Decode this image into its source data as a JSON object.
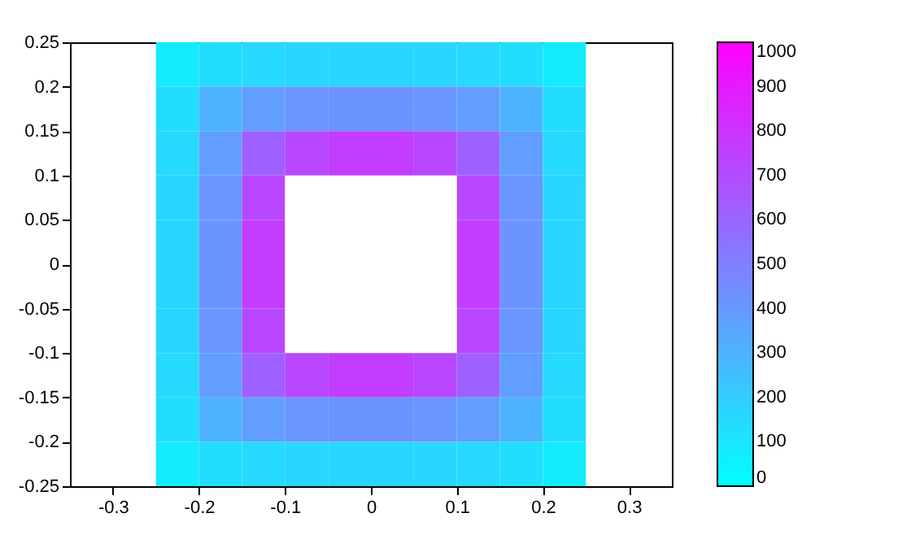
{
  "chart_data": {
    "type": "heatmap",
    "x": [
      -0.225,
      -0.175,
      -0.125,
      -0.075,
      -0.025,
      0.025,
      0.075,
      0.125,
      0.175,
      0.225
    ],
    "y": [
      0.225,
      0.175,
      0.125,
      0.075,
      0.025,
      -0.025,
      -0.075,
      -0.125,
      -0.175,
      -0.225
    ],
    "cells": [
      [
        80,
        130,
        150,
        160,
        160,
        160,
        160,
        150,
        130,
        80
      ],
      [
        130,
        300,
        380,
        410,
        420,
        420,
        410,
        380,
        300,
        130
      ],
      [
        150,
        380,
        620,
        720,
        760,
        760,
        720,
        620,
        380,
        150
      ],
      [
        160,
        410,
        720,
        null,
        null,
        null,
        null,
        720,
        410,
        160
      ],
      [
        160,
        420,
        760,
        null,
        null,
        null,
        null,
        760,
        420,
        160
      ],
      [
        160,
        420,
        760,
        null,
        null,
        null,
        null,
        760,
        420,
        160
      ],
      [
        160,
        410,
        720,
        null,
        null,
        null,
        null,
        720,
        410,
        160
      ],
      [
        150,
        380,
        620,
        720,
        760,
        760,
        720,
        620,
        380,
        150
      ],
      [
        130,
        300,
        380,
        410,
        420,
        420,
        410,
        380,
        300,
        130
      ],
      [
        80,
        130,
        150,
        160,
        160,
        160,
        160,
        150,
        130,
        80
      ]
    ],
    "colors": [
      "#00ffff",
      "#ff00ff"
    ],
    "xlim": [
      -0.35,
      0.35
    ],
    "xticks": [
      -0.3,
      -0.2,
      -0.1,
      0,
      0.1,
      0.2,
      0.3
    ],
    "ylim": [
      -0.25,
      0.25
    ],
    "yticks": [
      -0.25,
      -0.2,
      -0.15,
      -0.1,
      -0.05,
      0,
      0.05,
      0.1,
      0.15,
      0.2,
      0.25
    ],
    "clim": [
      0,
      1000
    ],
    "cticks": [
      0,
      100,
      200,
      300,
      400,
      500,
      600,
      700,
      800,
      900,
      1000
    ],
    "grid": false
  }
}
